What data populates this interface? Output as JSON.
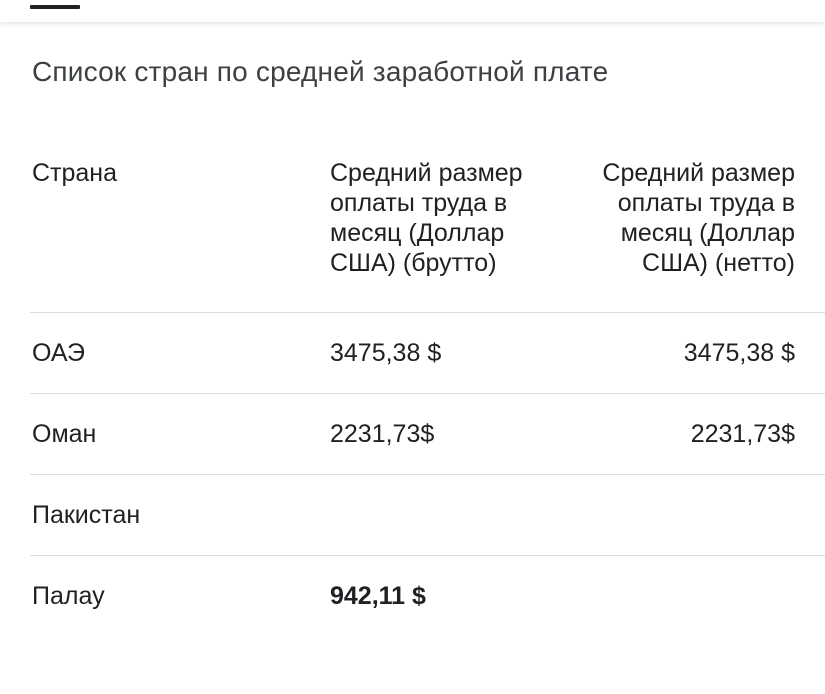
{
  "title": "Список стран по средней заработной плате",
  "columns": {
    "country": "Страна",
    "gross": "Средний размер оплаты труда в месяц (Доллар США) (брутто)",
    "net": "Средний размер оплаты труда в месяц (Доллар США) (нетто)"
  },
  "rows": [
    {
      "country": "ОАЭ",
      "gross": "3475,38 $",
      "net": "3475,38 $"
    },
    {
      "country": "Оман",
      "gross": "2231,73$",
      "net": "2231,73$"
    },
    {
      "country": "Пакистан",
      "gross": "",
      "net": ""
    },
    {
      "country": "Палау",
      "gross": "942,11 $",
      "net": ""
    }
  ]
}
